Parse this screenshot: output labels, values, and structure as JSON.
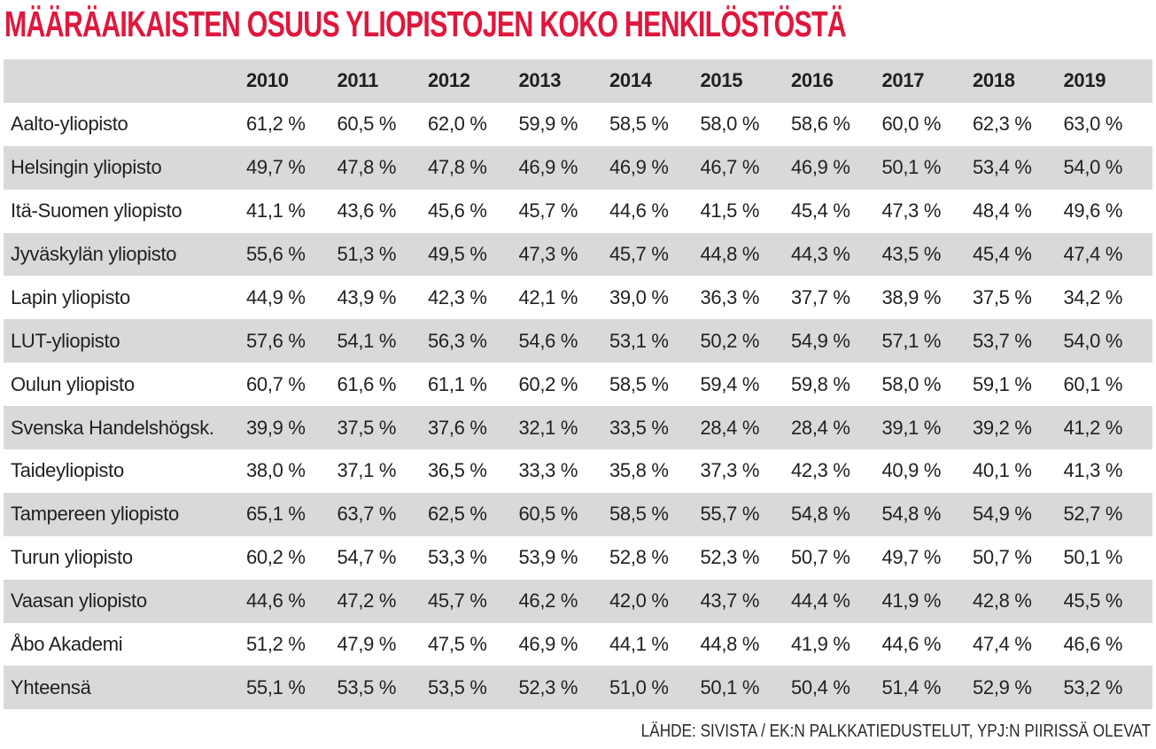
{
  "title": "MÄÄRÄAIKAISTEN OSUUS YLIOPISTOJEN KOKO HENKILÖSTÖSTÄ",
  "source_note": "LÄHDE: SIVISTA / EK:N PALKKATIEDUSTELUT, YPJ:N PIIRISSÄ OLEVAT",
  "colors": {
    "title_red": "#e0173d",
    "stripe_gray": "#d9d9d9",
    "text_dark": "#231f20",
    "background": "#ffffff"
  },
  "chart_data": {
    "type": "table",
    "title": "MÄÄRÄAIKAISTEN OSUUS YLIOPISTOJEN KOKO HENKILÖSTÖSTÄ",
    "columns": [
      "",
      "2010",
      "2011",
      "2012",
      "2013",
      "2014",
      "2015",
      "2016",
      "2017",
      "2018",
      "2019"
    ],
    "rows": [
      {
        "label": "Aalto-yliopisto",
        "values": [
          "61,2 %",
          "60,5 %",
          "62,0 %",
          "59,9 %",
          "58,5 %",
          "58,0 %",
          "58,6 %",
          "60,0 %",
          "62,3 %",
          "63,0 %"
        ]
      },
      {
        "label": "Helsingin yliopisto",
        "values": [
          "49,7 %",
          "47,8 %",
          "47,8 %",
          "46,9 %",
          "46,9 %",
          "46,7 %",
          "46,9 %",
          "50,1 %",
          "53,4 %",
          "54,0 %"
        ]
      },
      {
        "label": "Itä-Suomen yliopisto",
        "values": [
          "41,1 %",
          "43,6 %",
          "45,6 %",
          "45,7 %",
          "44,6 %",
          "41,5 %",
          "45,4 %",
          "47,3 %",
          "48,4 %",
          "49,6 %"
        ]
      },
      {
        "label": "Jyväskylän yliopisto",
        "values": [
          "55,6 %",
          "51,3 %",
          "49,5 %",
          "47,3 %",
          "45,7 %",
          "44,8 %",
          "44,3 %",
          "43,5 %",
          "45,4 %",
          "47,4 %"
        ]
      },
      {
        "label": "Lapin yliopisto",
        "values": [
          "44,9 %",
          "43,9 %",
          "42,3 %",
          "42,1 %",
          "39,0 %",
          "36,3 %",
          "37,7 %",
          "38,9 %",
          "37,5 %",
          "34,2 %"
        ]
      },
      {
        "label": "LUT-yliopisto",
        "values": [
          "57,6 %",
          "54,1 %",
          "56,3 %",
          "54,6 %",
          "53,1 %",
          "50,2 %",
          "54,9 %",
          "57,1 %",
          "53,7 %",
          "54,0 %"
        ]
      },
      {
        "label": "Oulun yliopisto",
        "values": [
          "60,7 %",
          "61,6 %",
          "61,1 %",
          "60,2 %",
          "58,5 %",
          "59,4 %",
          "59,8 %",
          "58,0 %",
          "59,1 %",
          "60,1 %"
        ]
      },
      {
        "label": "Svenska Handelshögsk.",
        "values": [
          "39,9 %",
          "37,5 %",
          "37,6 %",
          "32,1 %",
          "33,5 %",
          "28,4 %",
          "28,4 %",
          "39,1 %",
          "39,2 %",
          "41,2 %"
        ]
      },
      {
        "label": "Taideyliopisto",
        "values": [
          "38,0 %",
          "37,1 %",
          "36,5 %",
          "33,3 %",
          "35,8 %",
          "37,3 %",
          "42,3 %",
          "40,9 %",
          "40,1 %",
          "41,3 %"
        ]
      },
      {
        "label": "Tampereen yliopisto",
        "values": [
          "65,1 %",
          "63,7 %",
          "62,5 %",
          "60,5 %",
          "58,5 %",
          "55,7 %",
          "54,8 %",
          "54,8 %",
          "54,9 %",
          "52,7 %"
        ]
      },
      {
        "label": "Turun yliopisto",
        "values": [
          "60,2 %",
          "54,7 %",
          "53,3 %",
          "53,9 %",
          "52,8 %",
          "52,3 %",
          "50,7 %",
          "49,7 %",
          "50,7 %",
          "50,1 %"
        ]
      },
      {
        "label": "Vaasan yliopisto",
        "values": [
          "44,6 %",
          "47,2 %",
          "45,7 %",
          "46,2 %",
          "42,0 %",
          "43,7 %",
          "44,4 %",
          "41,9 %",
          "42,8 %",
          "45,5 %"
        ]
      },
      {
        "label": "Åbo Akademi",
        "values": [
          "51,2 %",
          "47,9 %",
          "47,5 %",
          "46,9 %",
          "44,1 %",
          "44,8 %",
          "41,9 %",
          "44,6 %",
          "47,4 %",
          "46,6 %"
        ]
      },
      {
        "label": "Yhteensä",
        "values": [
          "55,1 %",
          "53,5 %",
          "53,5 %",
          "52,3 %",
          "51,0 %",
          "50,1 %",
          "50,4 %",
          "51,4 %",
          "52,9 %",
          "53,2 %"
        ]
      }
    ],
    "layout": {
      "zebra_striping": true,
      "header_background": "#d9d9d9",
      "grid": false,
      "legend": "none",
      "source_position": "bottom-right"
    },
    "source": "LÄHDE: SIVISTA / EK:N PALKKATIEDUSTELUT, YPJ:N PIIRISSÄ OLEVAT"
  }
}
